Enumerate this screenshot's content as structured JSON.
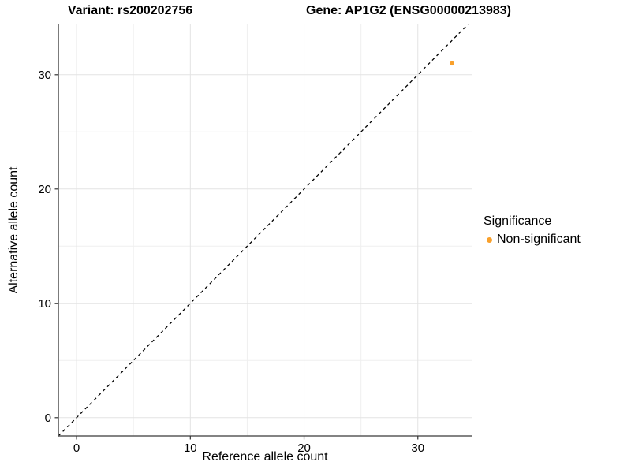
{
  "titles": {
    "variant": "Variant: rs200202756",
    "gene": "Gene: AP1G2 (ENSG00000213983)"
  },
  "chart_data": {
    "type": "scatter",
    "title": "Variant: rs200202756   Gene: AP1G2 (ENSG00000213983)",
    "xlabel": "Reference allele count",
    "ylabel": "Alternative allele count",
    "xlim": [
      -1.6,
      34.8
    ],
    "ylim": [
      -1.6,
      34.4
    ],
    "x_ticks": [
      0,
      10,
      20,
      30
    ],
    "y_ticks": [
      0,
      10,
      20,
      30
    ],
    "x_minor_ticks": [
      5,
      15,
      25
    ],
    "y_minor_ticks": [
      5,
      15,
      25
    ],
    "grid": true,
    "legend_position": "right",
    "points": [
      {
        "x": 33,
        "y": 31,
        "series": "Non-significant"
      }
    ],
    "reference_line": {
      "equation": "y = x",
      "style": "dashed",
      "color": "#000000"
    },
    "legend": {
      "title": "Significance",
      "items": [
        {
          "label": "Non-significant",
          "color": "#F9A02B"
        }
      ]
    },
    "colors": {
      "point": "#F9A02B",
      "grid_major": "#E3E3E3",
      "grid_minor": "#EFEFEF",
      "axis_line": "#5a5a5a",
      "tick": "#333333",
      "tick_label": "#000000"
    }
  }
}
